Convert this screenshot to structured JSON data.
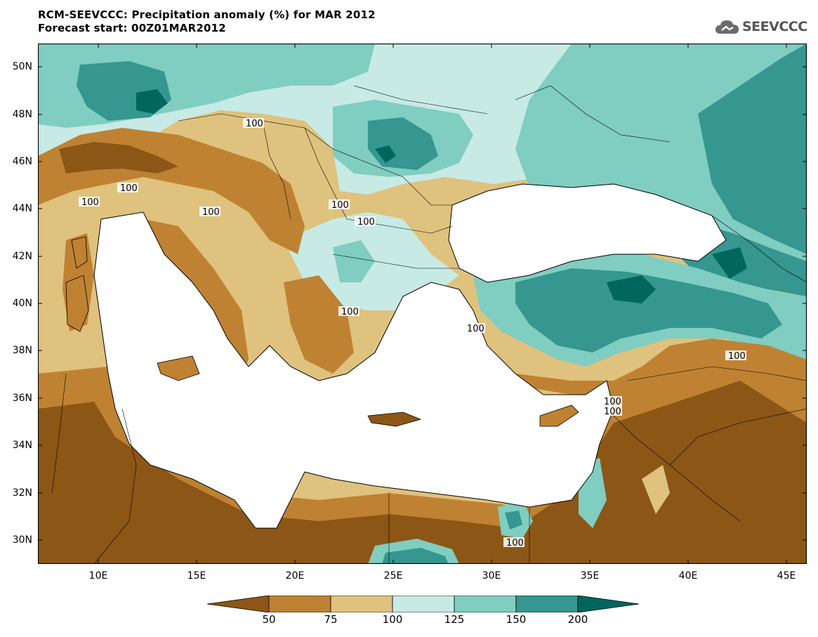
{
  "title": {
    "line1": "RCM-SEEVCCC: Precipitation anomaly (%) for MAR 2012",
    "line2": "Forecast start: 00Z01MAR2012"
  },
  "logo": {
    "text": "SEEVCCC",
    "icon": "cloud-icon"
  },
  "map": {
    "lat_labels": [
      "50N",
      "48N",
      "46N",
      "44N",
      "42N",
      "40N",
      "38N",
      "36N",
      "34N",
      "32N",
      "30N"
    ],
    "lon_labels": [
      "10E",
      "15E",
      "20E",
      "25E",
      "30E",
      "35E",
      "40E",
      "45E"
    ],
    "contour_labels": [
      "100",
      "100",
      "100",
      "100",
      "100",
      "100",
      "100",
      "100",
      "100",
      "100",
      "100",
      "100"
    ]
  },
  "colorbar": {
    "levels": [
      "50",
      "75",
      "100",
      "125",
      "150",
      "200"
    ],
    "colors": [
      "#8c5616",
      "#bf8233",
      "#dfc27d",
      "#c7eae5",
      "#80cdc1",
      "#35978f",
      "#01665e"
    ]
  }
}
